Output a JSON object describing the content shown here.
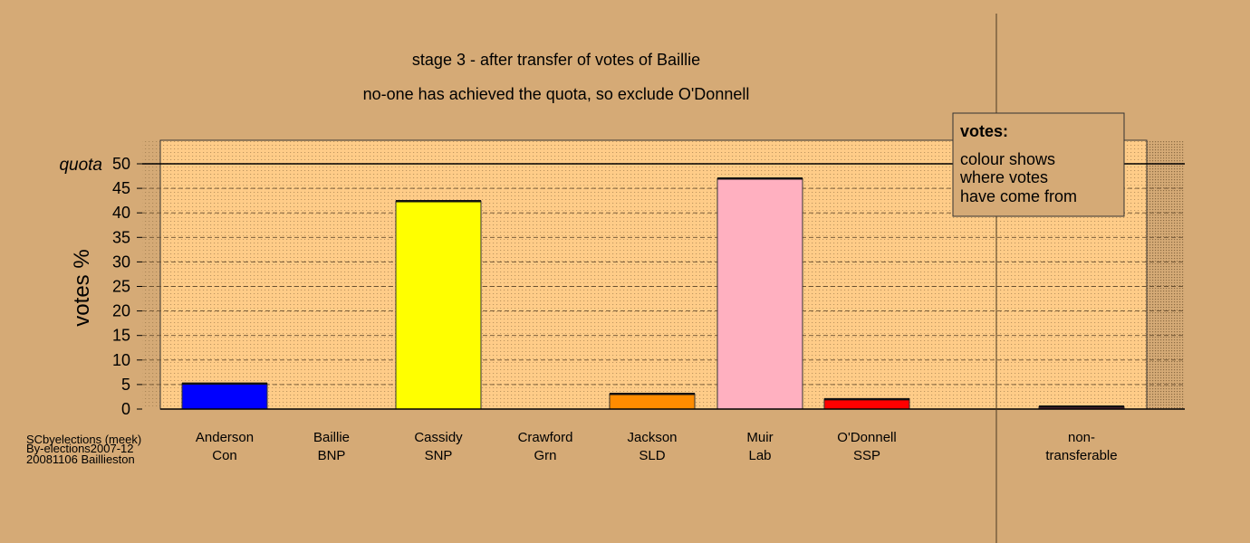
{
  "chart_data": {
    "type": "bar",
    "title": "stage 3 - after transfer of votes of Baillie",
    "subtitle": "no-one has achieved the quota, so exclude O'Donnell",
    "ylabel": "votes %",
    "ylim": [
      0,
      50
    ],
    "yticks": [
      0,
      5,
      10,
      15,
      20,
      25,
      30,
      35,
      40,
      45,
      50
    ],
    "quota": 50,
    "quota_label": "quota",
    "grid": true,
    "categories": [
      {
        "name": "Anderson",
        "party": "Con",
        "value": 5.2,
        "color": "#0000ff"
      },
      {
        "name": "Baillie",
        "party": "BNP",
        "value": 0,
        "color": "#000080"
      },
      {
        "name": "Cassidy",
        "party": "SNP",
        "value": 42.4,
        "color": "#ffff00"
      },
      {
        "name": "Crawford",
        "party": "Grn",
        "value": 0,
        "color": "#00a000"
      },
      {
        "name": "Jackson",
        "party": "SLD",
        "value": 3.1,
        "color": "#ff8c00"
      },
      {
        "name": "Muir",
        "party": "Lab",
        "value": 47.0,
        "color": "#ffb0c0"
      },
      {
        "name": "O'Donnell",
        "party": "SSP",
        "value": 2.0,
        "color": "#ff0000"
      },
      {
        "name": "non-",
        "party": "transferable",
        "value": 0.5,
        "color": "#6b2a40"
      }
    ],
    "legend": {
      "title": "votes:",
      "lines": [
        "colour shows",
        "where votes",
        "have come from"
      ],
      "placement": "top-right"
    },
    "footer": [
      "SCbyelections (meek)",
      "By-elections2007-12",
      "20081106 Baillieston"
    ]
  }
}
